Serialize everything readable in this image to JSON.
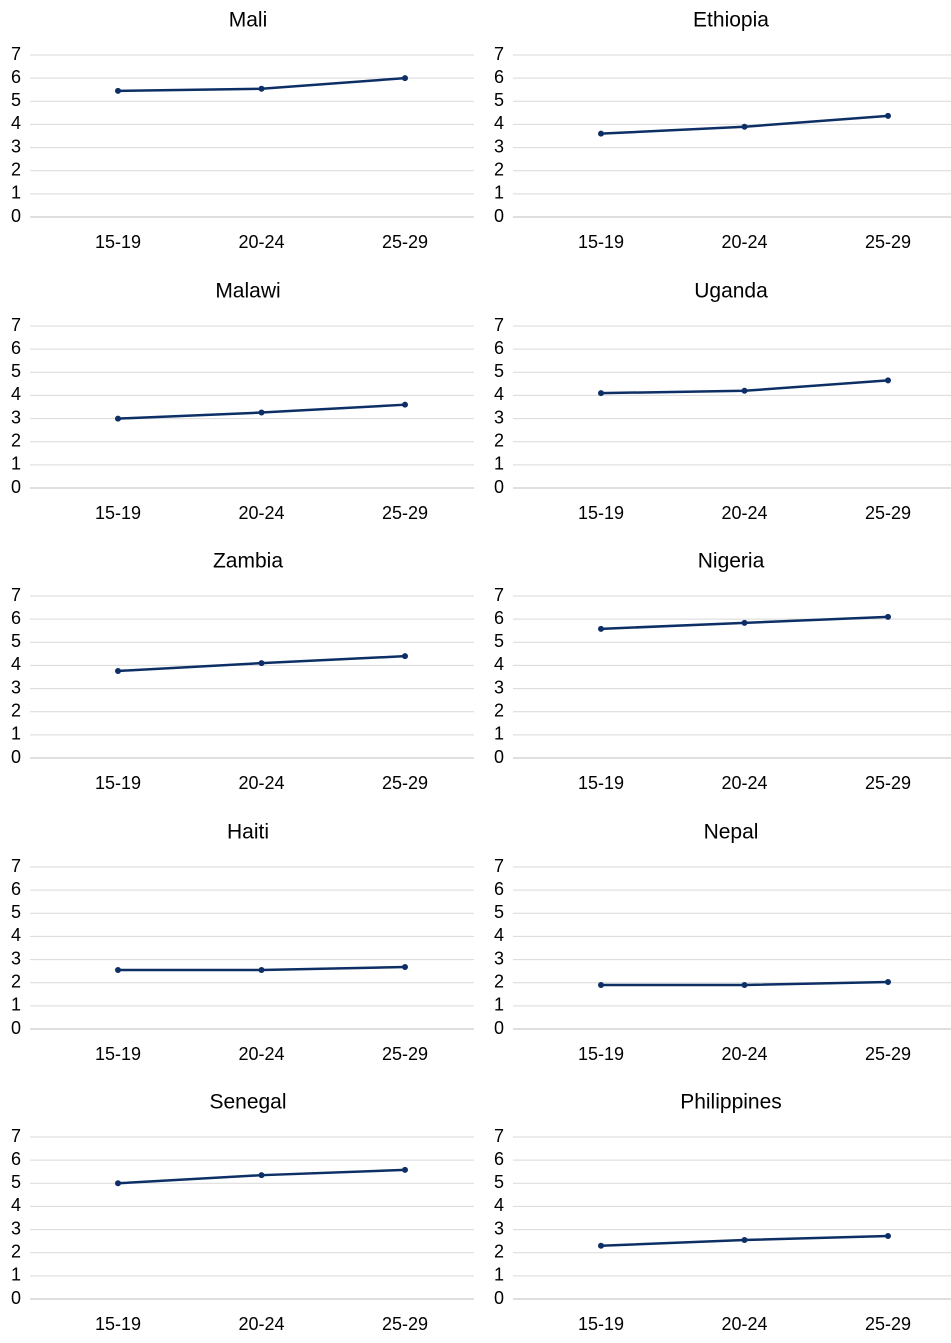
{
  "chart_data": [
    {
      "type": "line",
      "title": "Mali",
      "categories": [
        "15-19",
        "20-24",
        "25-29"
      ],
      "values": [
        5.45,
        5.54,
        6.0
      ],
      "color": "#0d2f66",
      "ylim": [
        0,
        7
      ],
      "yticks": [
        0,
        1,
        2,
        3,
        4,
        5,
        6,
        7
      ],
      "grid": true
    },
    {
      "type": "line",
      "title": "Ethiopia",
      "categories": [
        "15-19",
        "20-24",
        "25-29"
      ],
      "values": [
        3.6,
        3.9,
        4.37
      ],
      "color": "#0d2f66",
      "ylim": [
        0,
        7
      ],
      "yticks": [
        0,
        1,
        2,
        3,
        4,
        5,
        6,
        7
      ],
      "grid": true
    },
    {
      "type": "line",
      "title": "Malawi",
      "categories": [
        "15-19",
        "20-24",
        "25-29"
      ],
      "values": [
        3.0,
        3.26,
        3.6
      ],
      "color": "#0d2f66",
      "ylim": [
        0,
        7
      ],
      "yticks": [
        0,
        1,
        2,
        3,
        4,
        5,
        6,
        7
      ],
      "grid": true
    },
    {
      "type": "line",
      "title": "Uganda",
      "categories": [
        "15-19",
        "20-24",
        "25-29"
      ],
      "values": [
        4.1,
        4.2,
        4.65
      ],
      "color": "#0d2f66",
      "ylim": [
        0,
        7
      ],
      "yticks": [
        0,
        1,
        2,
        3,
        4,
        5,
        6,
        7
      ],
      "grid": true
    },
    {
      "type": "line",
      "title": "Zambia",
      "categories": [
        "15-19",
        "20-24",
        "25-29"
      ],
      "values": [
        3.76,
        4.1,
        4.4
      ],
      "color": "#0d2f66",
      "ylim": [
        0,
        7
      ],
      "yticks": [
        0,
        1,
        2,
        3,
        4,
        5,
        6,
        7
      ],
      "grid": true
    },
    {
      "type": "line",
      "title": "Nigeria",
      "categories": [
        "15-19",
        "20-24",
        "25-29"
      ],
      "values": [
        5.58,
        5.84,
        6.1
      ],
      "color": "#0d2f66",
      "ylim": [
        0,
        7
      ],
      "yticks": [
        0,
        1,
        2,
        3,
        4,
        5,
        6,
        7
      ],
      "grid": true
    },
    {
      "type": "line",
      "title": "Haiti",
      "categories": [
        "15-19",
        "20-24",
        "25-29"
      ],
      "values": [
        2.55,
        2.55,
        2.68
      ],
      "color": "#0d2f66",
      "ylim": [
        0,
        7
      ],
      "yticks": [
        0,
        1,
        2,
        3,
        4,
        5,
        6,
        7
      ],
      "grid": true
    },
    {
      "type": "line",
      "title": "Nepal",
      "categories": [
        "15-19",
        "20-24",
        "25-29"
      ],
      "values": [
        1.9,
        1.9,
        2.03
      ],
      "color": "#0d2f66",
      "ylim": [
        0,
        7
      ],
      "yticks": [
        0,
        1,
        2,
        3,
        4,
        5,
        6,
        7
      ],
      "grid": true
    },
    {
      "type": "line",
      "title": "Senegal",
      "categories": [
        "15-19",
        "20-24",
        "25-29"
      ],
      "values": [
        5.0,
        5.35,
        5.58
      ],
      "color": "#0d2f66",
      "ylim": [
        0,
        7
      ],
      "yticks": [
        0,
        1,
        2,
        3,
        4,
        5,
        6,
        7
      ],
      "grid": true
    },
    {
      "type": "line",
      "title": "Philippines",
      "categories": [
        "15-19",
        "20-24",
        "25-29"
      ],
      "values": [
        2.3,
        2.55,
        2.72
      ],
      "color": "#0d2f66",
      "ylim": [
        0,
        7
      ],
      "yticks": [
        0,
        1,
        2,
        3,
        4,
        5,
        6,
        7
      ],
      "grid": true
    }
  ]
}
